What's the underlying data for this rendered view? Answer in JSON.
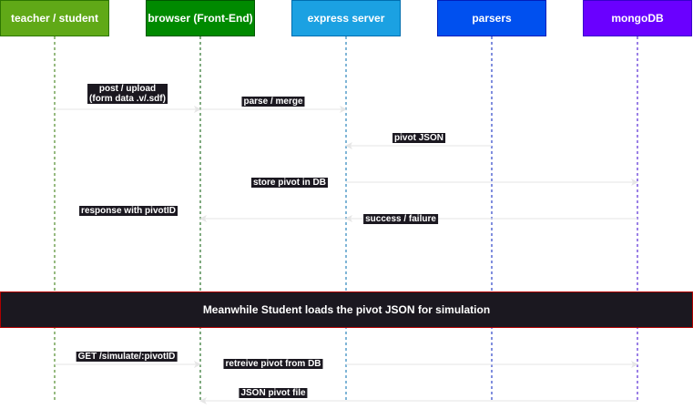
{
  "actors": [
    {
      "key": "teacher",
      "label": "teacher / student",
      "fill": "#60a917",
      "border": "#2d7600",
      "lifeline": "#2d7600"
    },
    {
      "key": "browser",
      "label": "browser (Front-End)",
      "fill": "#008a00",
      "border": "#005700",
      "lifeline": "#005700"
    },
    {
      "key": "express",
      "label": "express server",
      "fill": "#1ba1e2",
      "border": "#006eaf",
      "lifeline": "#006eaf"
    },
    {
      "key": "parsers",
      "label": "parsers",
      "fill": "#0050ef",
      "border": "#001dbc",
      "lifeline": "#001dbc"
    },
    {
      "key": "mongo",
      "label": "mongoDB",
      "fill": "#6a00ff",
      "border": "#3700cc",
      "lifeline": "#3700cc"
    }
  ],
  "messages": [
    {
      "from": "teacher",
      "to": "browser",
      "label": "post / upload\n(form data .v/.sdf)"
    },
    {
      "from": "browser",
      "to": "express",
      "label": "parse / merge"
    },
    {
      "from": "parsers",
      "to": "express",
      "label": "pivot JSON"
    },
    {
      "from": "express",
      "to": "mongo",
      "label": "store pivot in DB"
    },
    {
      "from": "express",
      "to": "browser",
      "label": "response with pivotID"
    },
    {
      "from": "mongo",
      "to": "express",
      "label": "success / failure"
    },
    {
      "from": "teacher",
      "to": "browser",
      "label": "GET /simulate/:pivotID"
    },
    {
      "from": "express",
      "to": "mongo",
      "label": "retreive pivot from DB"
    },
    {
      "from": "mongo",
      "to": "browser",
      "label": "JSON pivot file"
    }
  ],
  "banner": {
    "text": "Meanwhile Student loads the pivot JSON for simulation",
    "fill": "#1b1820",
    "border": "#b00000"
  },
  "colors": {
    "arrow": "#e6e6e6",
    "label_bg": "#1b1820"
  }
}
